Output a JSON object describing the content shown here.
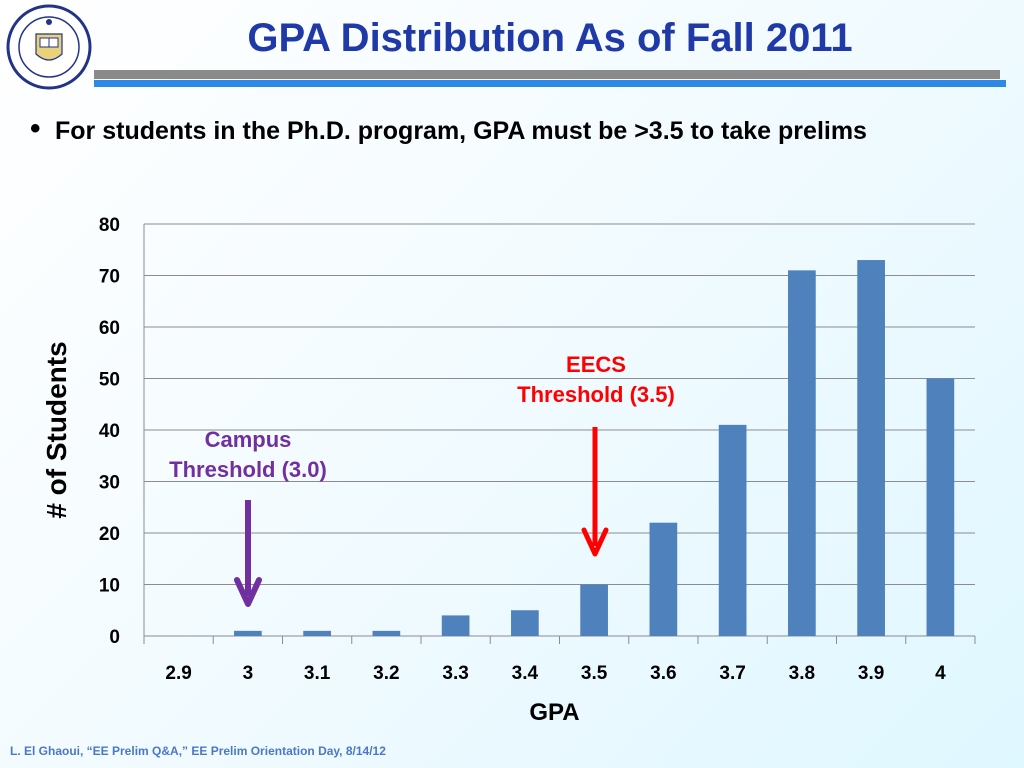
{
  "slide": {
    "title": "GPA Distribution As of Fall 2011",
    "bullet": "For students in the Ph.D. program, GPA must be >3.5 to take prelims",
    "footer": "L. El Ghaoui, “EE Prelim Q&A,” EE Prelim Orientation Day, 8/14/12",
    "seal_icon": "university-seal-icon",
    "colors": {
      "title": "#1f3aa8",
      "rule_gray": "#8a8a8a",
      "rule_blue": "#2e88e6",
      "bar": "#4f81bd",
      "campus": "#7030a0",
      "eecs": "#ff0000"
    }
  },
  "chart_data": {
    "type": "bar",
    "categories": [
      "2.9",
      "3",
      "3.1",
      "3.2",
      "3.3",
      "3.4",
      "3.5",
      "3.6",
      "3.7",
      "3.8",
      "3.9",
      "4"
    ],
    "values": [
      0,
      1,
      1,
      1,
      4,
      5,
      10,
      22,
      41,
      71,
      73,
      50
    ],
    "title": "",
    "xlabel": "GPA",
    "ylabel": "# of Students",
    "ylim": [
      0,
      80
    ],
    "yticks": [
      0,
      10,
      20,
      30,
      40,
      50,
      60,
      70,
      80
    ],
    "grid": true,
    "legend": "none",
    "annotations": [
      {
        "lines": [
          "Campus",
          "Threshold (3.0)"
        ],
        "category": "3",
        "color": "#7030a0"
      },
      {
        "lines": [
          "EECS",
          "Threshold (3.5)"
        ],
        "category": "3.5",
        "color": "#ff0000"
      }
    ]
  }
}
